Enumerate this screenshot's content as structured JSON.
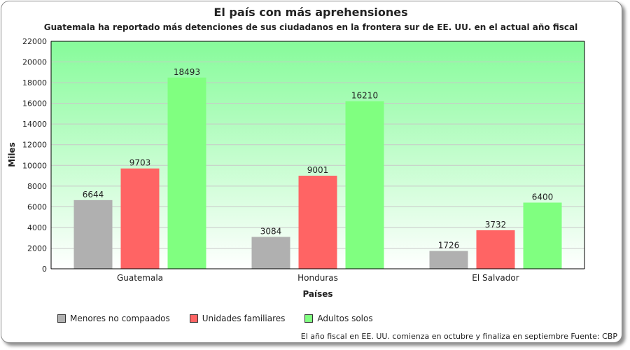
{
  "chart_data": {
    "type": "bar",
    "title": "El país con más aprehensiones",
    "subtitle": "Guatemala ha reportado más detenciones de sus ciudadanos en la frontera sur de EE. UU. en el actual año fiscal",
    "xlabel": "Países",
    "ylabel": "Miles",
    "ylim": [
      0,
      22000
    ],
    "yticks": [
      "0",
      "2000",
      "4000",
      "6000",
      "8000",
      "10000",
      "12000",
      "14000",
      "16000",
      "18000",
      "20000",
      "22000"
    ],
    "categories": [
      "Guatemala",
      "Honduras",
      "El Salvador"
    ],
    "series": [
      {
        "name": "Menores no compaados",
        "color": "#b0b0b0",
        "values": [
          6644,
          3084,
          1726
        ]
      },
      {
        "name": "Unidades familiares",
        "color": "#ff6464",
        "values": [
          9703,
          9001,
          3732
        ]
      },
      {
        "name": "Adultos solos",
        "color": "#80ff80",
        "values": [
          18493,
          16210,
          6400
        ]
      }
    ],
    "grid": true,
    "legend_position": "bottom-left",
    "footnote": "El año fiscal en EE. UU. comienza en octubre y finaliza en septiembre Fuente: CBP"
  }
}
